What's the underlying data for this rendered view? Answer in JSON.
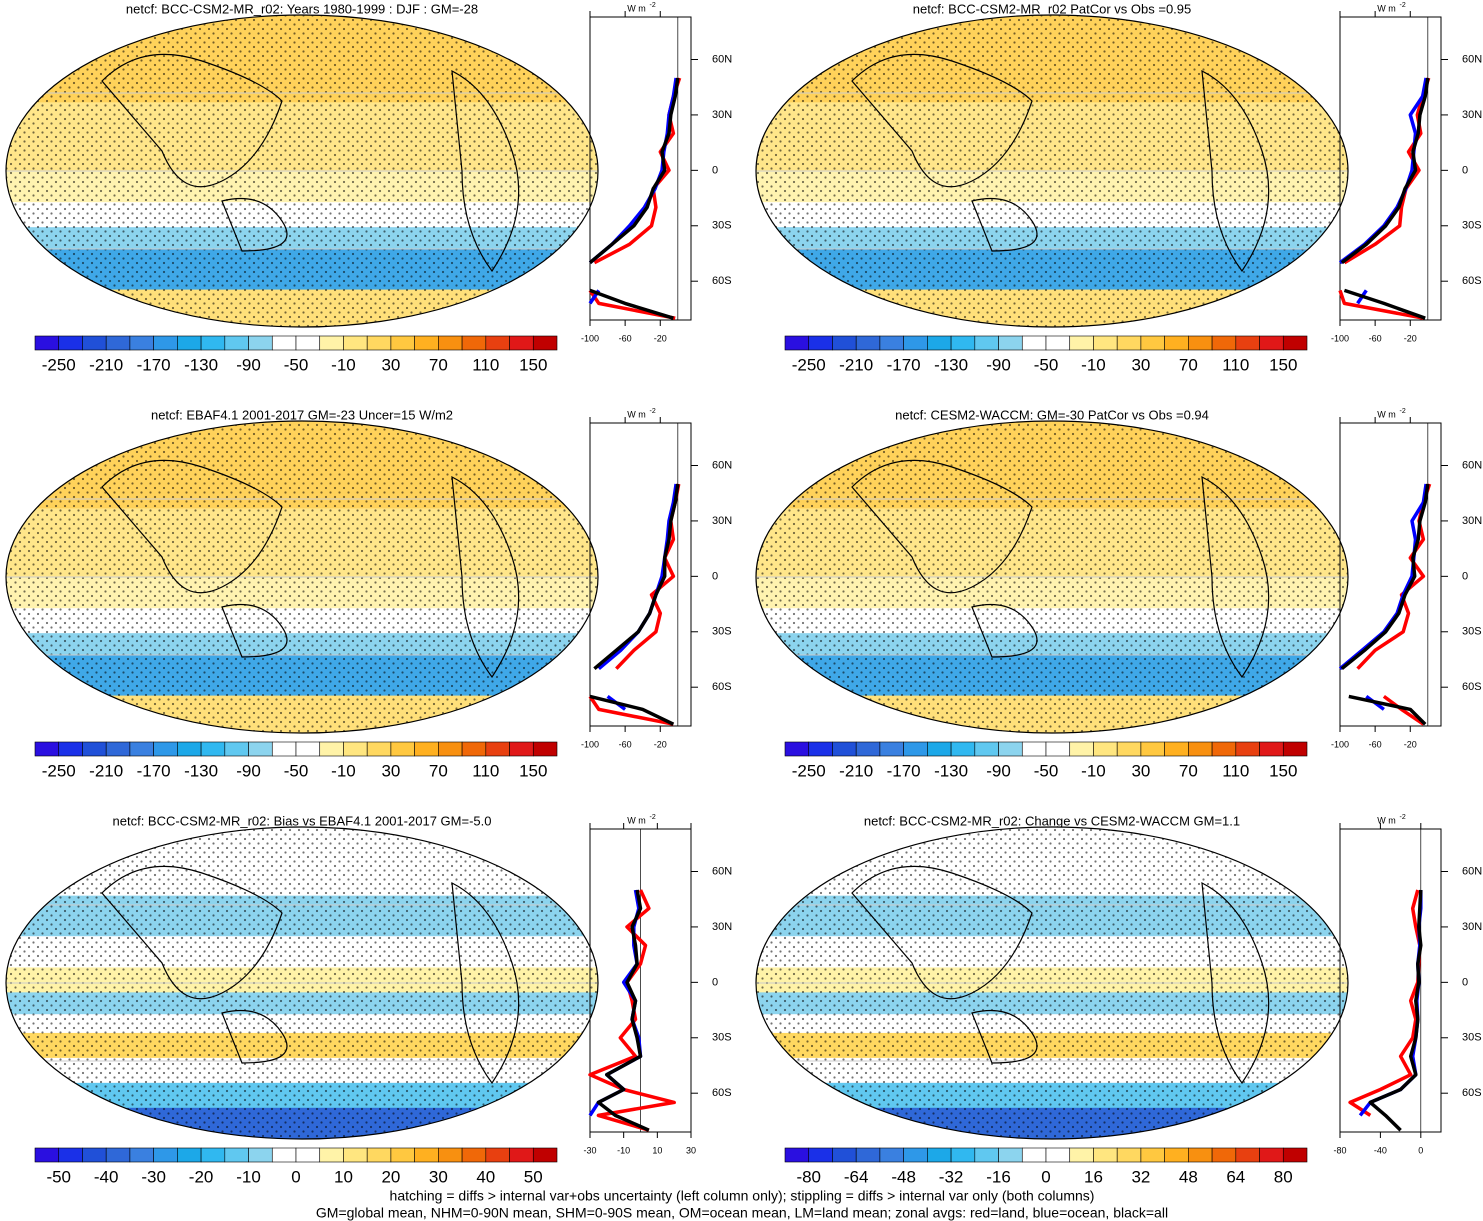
{
  "panels": [
    {
      "title": "netcf: BCC-CSM2-MR_r02: Years 1980-1999 : DJF : GM=-28",
      "colorbar": [
        -250,
        -210,
        -170,
        -130,
        -90,
        -50,
        -10,
        30,
        70,
        110,
        150
      ],
      "profile": {
        "unit": "W m",
        "unit_exp": "-2",
        "xlim": [
          -100,
          15
        ],
        "xticks": [
          -100,
          -60,
          -20
        ],
        "series": [
          {
            "color": "#ff0000",
            "values": [
              -3,
              -90,
              -100,
              null,
              -95,
              -55,
              -30,
              -25,
              -28,
              -10,
              -20,
              -5,
              -10,
              -5,
              2
            ]
          },
          {
            "color": "#0000ff",
            "values": [
              null,
              -100,
              -90,
              null,
              -100,
              -75,
              -55,
              -38,
              -26,
              -18,
              -16,
              -12,
              -10,
              -5,
              -2
            ]
          },
          {
            "color": "#000000",
            "values": [
              -5,
              -60,
              -100,
              null,
              -100,
              -75,
              -50,
              -35,
              -28,
              -15,
              -18,
              -10,
              -8,
              -3,
              0
            ]
          }
        ]
      }
    },
    {
      "title": "netcf: BCC-CSM2-MR_r02 PatCor vs Obs =0.95",
      "colorbar": [
        -250,
        -210,
        -170,
        -130,
        -90,
        -50,
        -10,
        30,
        70,
        110,
        150
      ],
      "profile": {
        "unit": "W m",
        "unit_exp": "-2",
        "xlim": [
          -100,
          15
        ],
        "xticks": [
          -100,
          -60,
          -20
        ],
        "series": [
          {
            "color": "#ff0000",
            "values": [
              -5,
              -95,
              -100,
              null,
              -95,
              -60,
              -32,
              -30,
              -25,
              -10,
              -22,
              -8,
              -12,
              -6,
              1
            ]
          },
          {
            "color": "#0000ff",
            "values": [
              null,
              -80,
              -70,
              null,
              -100,
              -72,
              -50,
              -35,
              -25,
              -18,
              -16,
              -14,
              -20,
              -6,
              -2
            ]
          },
          {
            "color": "#000000",
            "values": [
              -3,
              -50,
              -95,
              null,
              -98,
              -70,
              -48,
              -33,
              -26,
              -14,
              -17,
              -11,
              -9,
              -3,
              0
            ]
          }
        ]
      }
    },
    {
      "title": "netcf: EBAF4.1 2001-2017 GM=-23 Uncer=15 W/m2",
      "colorbar": [
        -250,
        -210,
        -170,
        -130,
        -90,
        -50,
        -10,
        30,
        70,
        110,
        150
      ],
      "profile": {
        "unit": "W m",
        "unit_exp": "-2",
        "xlim": [
          -100,
          15
        ],
        "xticks": [
          -100,
          -60,
          -20
        ],
        "series": [
          {
            "color": "#ff0000",
            "values": [
              -5,
              -90,
              -100,
              null,
              -70,
              -50,
              -25,
              -20,
              -30,
              -5,
              -15,
              -5,
              -8,
              -3,
              1
            ]
          },
          {
            "color": "#0000ff",
            "values": [
              null,
              -60,
              -80,
              null,
              -90,
              -65,
              -45,
              -32,
              -25,
              -18,
              -15,
              -12,
              -10,
              -5,
              -2
            ]
          },
          {
            "color": "#000000",
            "values": [
              -5,
              -40,
              -100,
              null,
              -95,
              -70,
              -45,
              -32,
              -25,
              -15,
              -15,
              -10,
              -8,
              -3,
              0
            ]
          }
        ]
      }
    },
    {
      "title": "netcf: CESM2-WACCM: GM=-30 PatCor vs Obs =0.94",
      "colorbar": [
        -250,
        -210,
        -170,
        -130,
        -90,
        -50,
        -10,
        30,
        70,
        110,
        150
      ],
      "profile": {
        "unit": "W m",
        "unit_exp": "-2",
        "xlim": [
          -100,
          15
        ],
        "xticks": [
          -100,
          -60,
          -20
        ],
        "series": [
          {
            "color": "#ff0000",
            "values": [
              -5,
              -30,
              -50,
              null,
              -80,
              -60,
              -28,
              -22,
              -30,
              -5,
              -20,
              -5,
              -10,
              -5,
              2
            ]
          },
          {
            "color": "#0000ff",
            "values": [
              null,
              -50,
              -70,
              null,
              -100,
              -75,
              -50,
              -35,
              -28,
              -18,
              -16,
              -14,
              -18,
              -5,
              -2
            ]
          },
          {
            "color": "#000000",
            "values": [
              -3,
              -20,
              -90,
              null,
              -98,
              -72,
              -48,
              -33,
              -26,
              -15,
              -17,
              -11,
              -9,
              -3,
              0
            ]
          }
        ]
      }
    },
    {
      "title": "netcf: BCC-CSM2-MR_r02: Bias vs EBAF4.1 2001-2017 GM=-5.0",
      "colorbar": [
        -50,
        -40,
        -30,
        -20,
        -10,
        0,
        10,
        20,
        30,
        40,
        50
      ],
      "profile": {
        "unit": "W m",
        "unit_exp": "-2",
        "xlim": [
          -30,
          30
        ],
        "xticks": [
          -30,
          -10,
          10,
          30
        ],
        "series": [
          {
            "color": "#ff0000",
            "values": [
              5,
              -25,
              20,
              -10,
              -30,
              -3,
              -12,
              -3,
              -5,
              -8,
              0,
              3,
              -8,
              5,
              0
            ]
          },
          {
            "color": "#0000ff",
            "values": [
              null,
              -30,
              -25,
              -10,
              -20,
              0,
              -1,
              -5,
              -3,
              -10,
              -2,
              -4,
              -4,
              -1,
              -3
            ]
          },
          {
            "color": "#000000",
            "values": [
              5,
              -15,
              -25,
              -10,
              -20,
              0,
              -2,
              -5,
              -3,
              -8,
              -2,
              -3,
              -5,
              0,
              -2
            ]
          }
        ]
      }
    },
    {
      "title": "netcf: BCC-CSM2-MR_r02: Change vs CESM2-WACCM GM=1.1",
      "colorbar": [
        -80,
        -64,
        -48,
        -32,
        -16,
        0,
        16,
        32,
        48,
        64,
        80
      ],
      "profile": {
        "unit": "W m",
        "unit_exp": "-2",
        "xlim": [
          -80,
          20
        ],
        "xticks": [
          -80,
          -40,
          0
        ],
        "series": [
          {
            "color": "#ff0000",
            "values": [
              null,
              -50,
              -70,
              -40,
              -10,
              -20,
              -8,
              -5,
              -10,
              -3,
              -2,
              -1,
              -5,
              -8,
              -3
            ]
          },
          {
            "color": "#0000ff",
            "values": [
              null,
              -60,
              -50,
              -20,
              -5,
              -8,
              -5,
              -3,
              -4,
              -2,
              -3,
              -1,
              -2,
              0,
              0
            ]
          },
          {
            "color": "#000000",
            "values": [
              -20,
              -35,
              -50,
              -20,
              -5,
              -10,
              -5,
              -3,
              -5,
              -2,
              -3,
              0,
              -2,
              -1,
              0
            ]
          }
        ]
      }
    }
  ],
  "lat": [
    -80,
    -72,
    -65,
    -58,
    -50,
    -40,
    -30,
    -20,
    -10,
    0,
    10,
    20,
    30,
    40,
    50
  ],
  "lat_ylim": [
    -81,
    83
  ],
  "lat_ticks": [
    {
      "value": 60,
      "label": "60N"
    },
    {
      "value": 30,
      "label": "30N"
    },
    0,
    {
      "value": -30,
      "label": "30S"
    },
    {
      "value": -60,
      "label": "60S"
    }
  ],
  "colorbar_colors": [
    "#2a0fe0",
    "#1a30e8",
    "#2050d8",
    "#2f68d8",
    "#3a80e0",
    "#2e98e8",
    "#1ca8e8",
    "#30b8f0",
    "#60c8f0",
    "#8cd4ee",
    "#ffffff",
    "#ffffff",
    "#fff3a8",
    "#ffe680",
    "#ffd860",
    "#ffc840",
    "#ffb020",
    "#f89010",
    "#f06808",
    "#e84010",
    "#e01818",
    "#c00000"
  ],
  "footer": [
    "hatching = diffs > internal var+obs uncertainty (left column only); stippling = diffs > internal var only (both columns)",
    "GM=global mean, NHM=0-90N mean, SHM=0-90S mean, OM=ocean mean, LM=land mean; zonal avgs: red=land, blue=ocean, black=all"
  ]
}
